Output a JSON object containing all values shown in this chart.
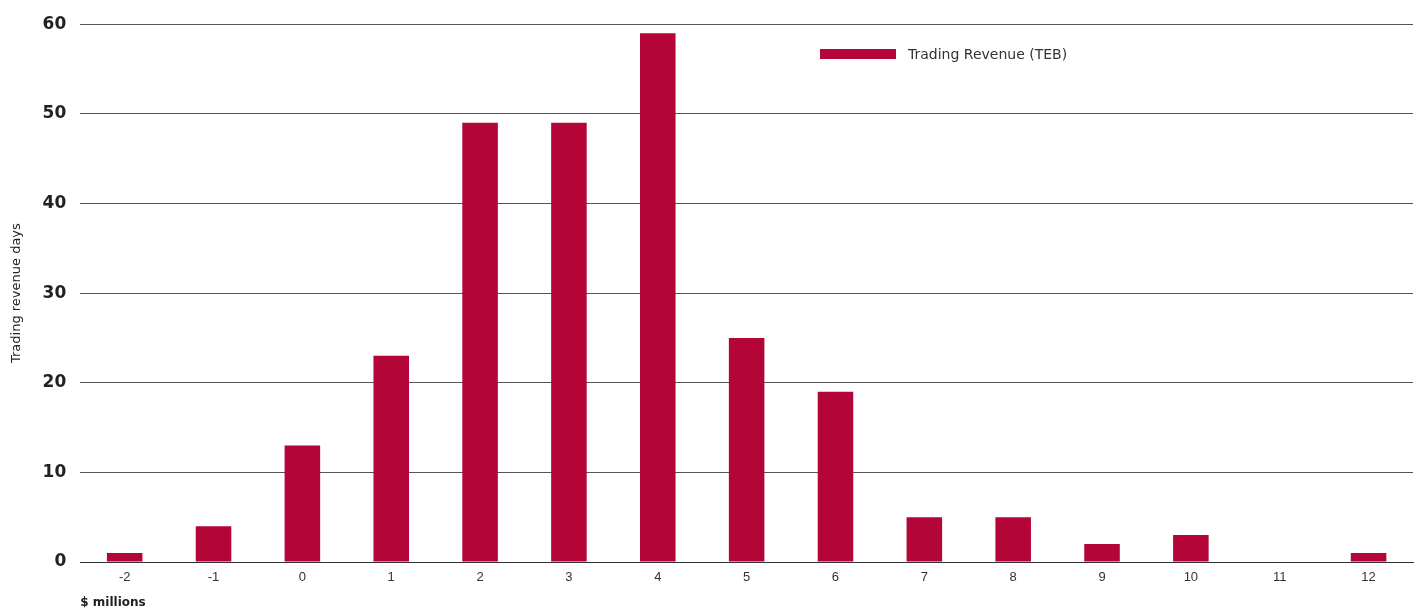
{
  "chart_data": {
    "type": "bar",
    "xlabel": "$ millions",
    "ylabel": "Trading revenue days",
    "categories": [
      "-2",
      "-1",
      "0",
      "1",
      "2",
      "3",
      "4",
      "5",
      "6",
      "7",
      "8",
      "9",
      "10",
      "11",
      "12"
    ],
    "series": [
      {
        "name": "Trading Revenue (TEB)",
        "color": "#b30538",
        "values": [
          1,
          4,
          13,
          23,
          49,
          49,
          59,
          25,
          19,
          5,
          5,
          2,
          3,
          0,
          1
        ]
      }
    ],
    "ylim": [
      0,
      60
    ],
    "yticks": [
      0,
      10,
      20,
      30,
      40,
      50,
      60
    ],
    "grid": "y",
    "legend": "top right"
  }
}
